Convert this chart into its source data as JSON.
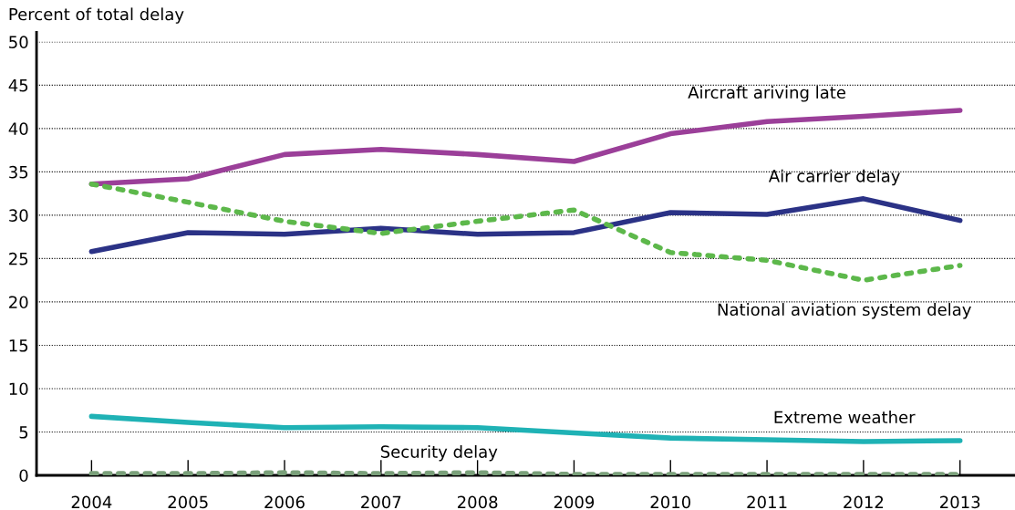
{
  "chart_data": {
    "type": "line",
    "ylabel": "Percent of total delay",
    "categories": [
      "2004",
      "2005",
      "2006",
      "2007",
      "2008",
      "2009",
      "2010",
      "2011",
      "2012",
      "2013"
    ],
    "ylim": [
      0,
      50
    ],
    "yticks": [
      0,
      5,
      10,
      15,
      20,
      25,
      30,
      35,
      40,
      45,
      50
    ],
    "grid": "y",
    "legend": false,
    "series": [
      {
        "name": "Aircraft ariving late",
        "color": "#9b3f99",
        "line_style": "solid",
        "values": [
          33.6,
          34.2,
          37.0,
          37.6,
          37.0,
          36.2,
          39.4,
          40.8,
          41.4,
          42.1
        ]
      },
      {
        "name": "Air carrier delay",
        "color": "#2b3286",
        "line_style": "solid",
        "values": [
          25.8,
          28.0,
          27.8,
          28.5,
          27.8,
          28.0,
          30.3,
          30.1,
          31.9,
          29.4
        ]
      },
      {
        "name": "National aviation system delay",
        "color": "#5db84b",
        "line_style": "dotted",
        "values": [
          33.6,
          31.5,
          29.3,
          27.9,
          29.3,
          30.6,
          25.7,
          24.8,
          22.5,
          24.2
        ]
      },
      {
        "name": "Extreme weather",
        "color": "#1fb2b5",
        "line_style": "solid",
        "values": [
          6.8,
          6.1,
          5.5,
          5.6,
          5.5,
          4.9,
          4.3,
          4.1,
          3.9,
          4.0
        ]
      },
      {
        "name": "Security delay",
        "color": "#7aa07a",
        "line_style": "dotted",
        "values": [
          0.2,
          0.2,
          0.3,
          0.2,
          0.3,
          0.1,
          0.1,
          0.1,
          0.1,
          0.1
        ]
      }
    ]
  }
}
